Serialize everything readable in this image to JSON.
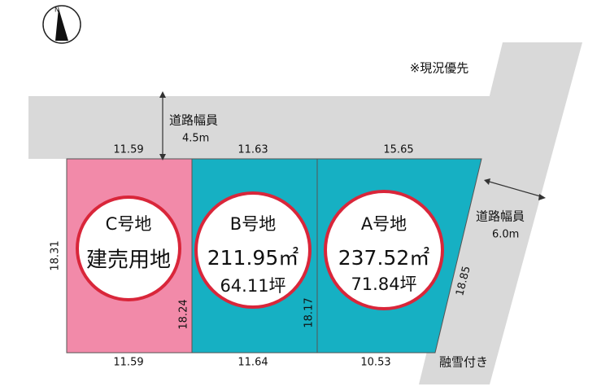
{
  "compass": "N",
  "note": "※現況優先",
  "roads": [
    {
      "label": "道路幅員",
      "width": "4.5m"
    },
    {
      "label": "道路幅員",
      "width": "6.0m"
    }
  ],
  "snow_melting": "融雪付き",
  "lots": [
    {
      "name": "C号地",
      "use": "建売用地"
    },
    {
      "name": "B号地",
      "area": "211.95㎡",
      "tsubo": "64.11坪"
    },
    {
      "name": "A号地",
      "area": "237.52㎡",
      "tsubo": "71.84坪"
    }
  ],
  "dimensions": {
    "top": [
      "11.59",
      "11.63",
      "15.65"
    ],
    "bottom": [
      "11.59",
      "11.64",
      "10.53"
    ],
    "sides": [
      "18.31",
      "18.24",
      "18.17",
      "18.85"
    ]
  }
}
